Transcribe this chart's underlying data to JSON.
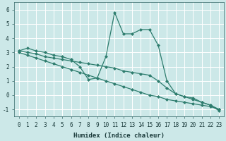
{
  "xlabel": "Humidex (Indice chaleur)",
  "background_color": "#cce8e8",
  "grid_color": "#ffffff",
  "line_color": "#2e7d6e",
  "x_values": [
    0,
    1,
    2,
    3,
    4,
    5,
    6,
    7,
    8,
    9,
    10,
    11,
    12,
    13,
    14,
    15,
    16,
    17,
    18,
    19,
    20,
    21,
    22,
    23
  ],
  "series1": [
    3.1,
    3.3,
    3.1,
    3.0,
    2.8,
    2.7,
    2.5,
    2.0,
    1.1,
    1.2,
    2.7,
    5.8,
    4.3,
    4.3,
    4.6,
    4.6,
    3.5,
    1.0,
    0.1,
    -0.1,
    -0.2,
    -0.5,
    -0.7,
    -1.1
  ],
  "series2": [
    3.0,
    2.8,
    2.6,
    2.4,
    2.2,
    2.0,
    1.8,
    1.6,
    1.4,
    1.2,
    1.0,
    0.8,
    0.6,
    0.4,
    0.2,
    0.0,
    -0.1,
    -0.3,
    -0.4,
    -0.5,
    -0.6,
    -0.7,
    -0.8,
    -1.0
  ],
  "series3": [
    3.1,
    3.0,
    2.9,
    2.7,
    2.6,
    2.5,
    2.4,
    2.3,
    2.2,
    2.1,
    2.0,
    1.9,
    1.7,
    1.6,
    1.5,
    1.4,
    1.0,
    0.5,
    0.1,
    -0.1,
    -0.3,
    -0.5,
    -0.7,
    -1.0
  ],
  "ylim": [
    -1.5,
    6.5
  ],
  "xlim": [
    -0.5,
    23.5
  ],
  "yticks": [
    -1,
    0,
    1,
    2,
    3,
    4,
    5,
    6
  ],
  "xticks": [
    0,
    1,
    2,
    3,
    4,
    5,
    6,
    7,
    8,
    9,
    10,
    11,
    12,
    13,
    14,
    15,
    16,
    17,
    18,
    19,
    20,
    21,
    22,
    23
  ],
  "tick_fontsize": 5.5,
  "xlabel_fontsize": 6.5,
  "figsize": [
    3.2,
    2.0
  ],
  "dpi": 100
}
